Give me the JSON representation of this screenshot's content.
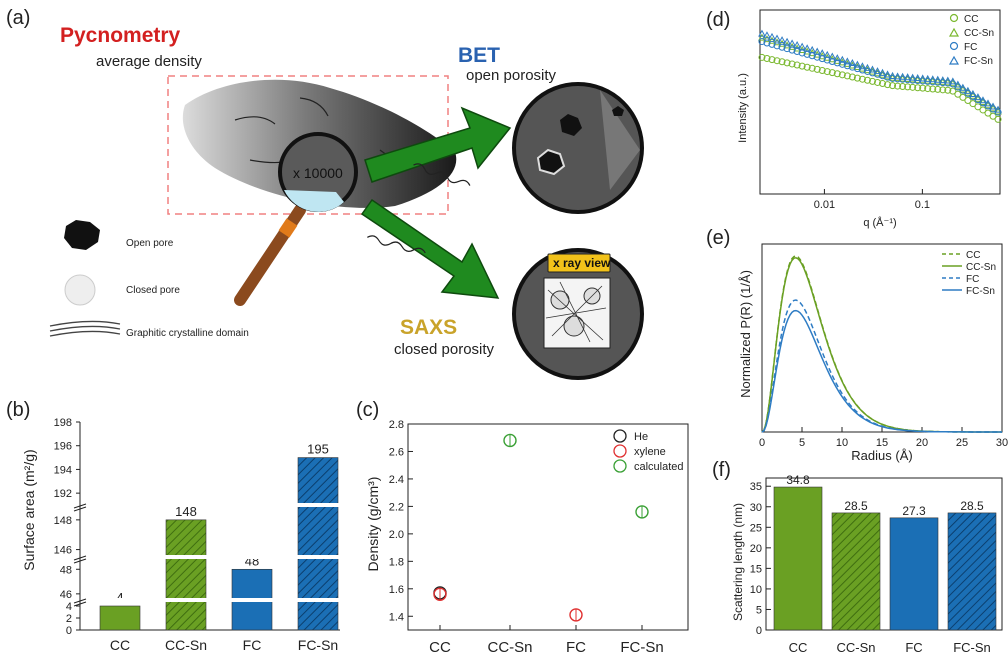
{
  "panels": {
    "a": {
      "label": "(a)",
      "pycnometry_title": "Pycnometry",
      "pycnometry_sub": "average density",
      "bet_title": "BET",
      "bet_sub": "open porosity",
      "saxs_title": "SAXS",
      "saxs_sub": "closed porosity",
      "magnifier_text": "x 10000",
      "xray_label": "x ray view",
      "legend": [
        "Open pore",
        "Closed  pore",
        "Graphitic crystalline domain"
      ],
      "colors": {
        "pycnometry": "#d32020",
        "bet": "#2a62b0",
        "saxs": "#c9a32a",
        "arrow": "#1f8a1f",
        "xray_box": "#f2c21a"
      }
    },
    "b": "(b)",
    "c": "(c)",
    "d": "(d)",
    "e": "(e)",
    "f": "(f)"
  },
  "colors": {
    "green": "#6aa023",
    "blue": "#1b6fb5",
    "red": "#e03030",
    "black": "#222222",
    "calc_green": "#3aa035"
  },
  "chart_data": [
    {
      "id": "b",
      "type": "bar",
      "ylabel": "Surface area (m²/g)",
      "categories": [
        "CC",
        "CC-Sn",
        "FC",
        "FC-Sn"
      ],
      "values": [
        4,
        148,
        48,
        195
      ],
      "value_labels": [
        "4",
        "148",
        "48",
        "195"
      ],
      "hatched": [
        false,
        true,
        false,
        true
      ],
      "bar_colors": [
        "#6aa023",
        "#6aa023",
        "#1b6fb5",
        "#1b6fb5"
      ],
      "axis_breaks": true,
      "y_ticks_segments": [
        [
          "0",
          "2",
          "4"
        ],
        [
          "46",
          "48"
        ],
        [
          "146",
          "148"
        ],
        [
          "192",
          "194",
          "196",
          "198"
        ]
      ]
    },
    {
      "id": "c",
      "type": "scatter",
      "ylabel": "Density (g/cm³)",
      "categories": [
        "CC",
        "CC-Sn",
        "FC",
        "FC-Sn"
      ],
      "ylim": [
        1.3,
        2.8
      ],
      "yticks": [
        "1.4",
        "1.6",
        "1.8",
        "2.0",
        "2.2",
        "2.4",
        "2.6",
        "2.8"
      ],
      "series": [
        {
          "name": "He",
          "color": "#222222",
          "points": [
            {
              "x": "CC",
              "y": 1.57
            }
          ]
        },
        {
          "name": "xylene",
          "color": "#e03030",
          "points": [
            {
              "x": "CC",
              "y": 1.56
            },
            {
              "x": "FC",
              "y": 1.41
            }
          ]
        },
        {
          "name": "calculated",
          "color": "#3aa035",
          "points": [
            {
              "x": "CC-Sn",
              "y": 2.68
            },
            {
              "x": "FC-Sn",
              "y": 2.16
            }
          ]
        }
      ],
      "legend_position": "top-right"
    },
    {
      "id": "d",
      "type": "scatter",
      "xlabel": "q (Å⁻¹)",
      "ylabel": "Intensity (a.u.)",
      "xscale": "log",
      "xticks": [
        "0.01",
        "0.1"
      ],
      "series": [
        {
          "name": "CC",
          "marker": "circle",
          "color": "#7ab82e"
        },
        {
          "name": "CC-Sn",
          "marker": "triangle",
          "color": "#7ab82e"
        },
        {
          "name": "FC",
          "marker": "circle",
          "color": "#2e7cc4"
        },
        {
          "name": "FC-Sn",
          "marker": "triangle",
          "color": "#2e7cc4"
        }
      ],
      "legend_position": "top-right"
    },
    {
      "id": "e",
      "type": "line",
      "xlabel": "Radius (Å)",
      "ylabel": "Normalized P(R) (1/Å)",
      "xlim": [
        0,
        30
      ],
      "xticks": [
        "0",
        "5",
        "10",
        "15",
        "20",
        "25",
        "30"
      ],
      "series": [
        {
          "name": "CC",
          "dashed": true,
          "color": "#6aa023",
          "peak_rel": 1.0
        },
        {
          "name": "CC-Sn",
          "dashed": false,
          "color": "#6aa023",
          "peak_rel": 0.99
        },
        {
          "name": "FC",
          "dashed": true,
          "color": "#2e7cc4",
          "peak_rel": 0.75
        },
        {
          "name": "FC-Sn",
          "dashed": false,
          "color": "#2e7cc4",
          "peak_rel": 0.69
        }
      ],
      "peak_radius": 4.2,
      "legend_position": "top-right"
    },
    {
      "id": "f",
      "type": "bar",
      "ylabel": "Scattering length (nm)",
      "categories": [
        "CC",
        "CC-Sn",
        "FC",
        "FC-Sn"
      ],
      "values": [
        34.8,
        28.5,
        27.3,
        28.5
      ],
      "value_labels": [
        "34.8",
        "28.5",
        "27.3",
        "28.5"
      ],
      "hatched": [
        false,
        true,
        false,
        true
      ],
      "bar_colors": [
        "#6aa023",
        "#6aa023",
        "#1b6fb5",
        "#1b6fb5"
      ],
      "ylim": [
        0,
        37
      ],
      "yticks": [
        "0",
        "5",
        "10",
        "15",
        "20",
        "25",
        "30",
        "35"
      ]
    }
  ]
}
